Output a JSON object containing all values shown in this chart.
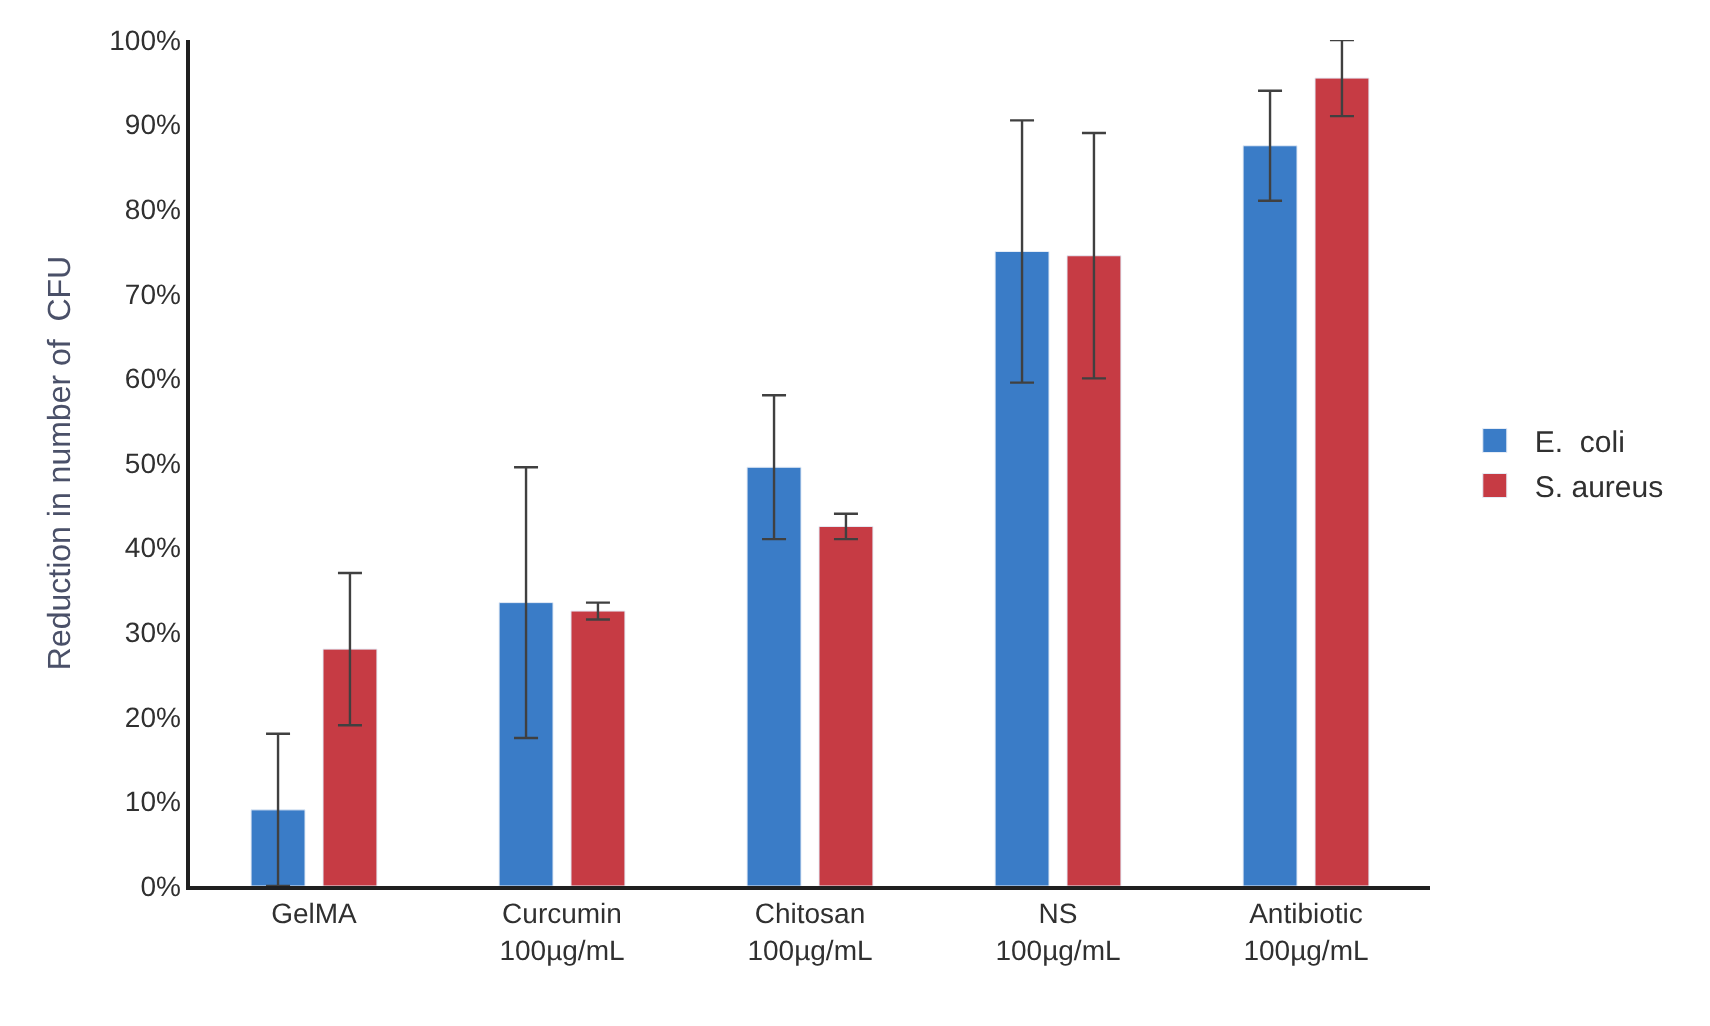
{
  "chart_data": {
    "type": "bar",
    "ylabel": "Reduction in number of  CFU",
    "categories": [
      "GelMA",
      "Curcumin\n100µg/mL",
      "Chitosan\n100µg/mL",
      "NS\n100µg/mL",
      "Antibiotic\n100µg/mL"
    ],
    "series": [
      {
        "name": "E.  coli",
        "color": "#3a7cc7",
        "values": [
          9,
          33.5,
          49.5,
          75,
          87.5
        ],
        "errors": [
          9,
          16,
          8.5,
          15.5,
          6.5
        ]
      },
      {
        "name": "S. aureus",
        "color": "#c63b44",
        "values": [
          28,
          32.5,
          42.5,
          74.5,
          95.5
        ],
        "errors": [
          9,
          1,
          1.5,
          14.5,
          4.5
        ]
      }
    ],
    "ylim": [
      0,
      100
    ],
    "yticks": [
      {
        "value": 0,
        "label": "0%"
      },
      {
        "value": 10,
        "label": "10%"
      },
      {
        "value": 20,
        "label": "20%"
      },
      {
        "value": 30,
        "label": "30%"
      },
      {
        "value": 40,
        "label": "40%"
      },
      {
        "value": 50,
        "label": "50%"
      },
      {
        "value": 60,
        "label": "60%"
      },
      {
        "value": 70,
        "label": "70%"
      },
      {
        "value": 80,
        "label": "80%"
      },
      {
        "value": 90,
        "label": "90%"
      },
      {
        "value": 100,
        "label": "100%"
      }
    ],
    "grid": false,
    "legend": "right"
  }
}
